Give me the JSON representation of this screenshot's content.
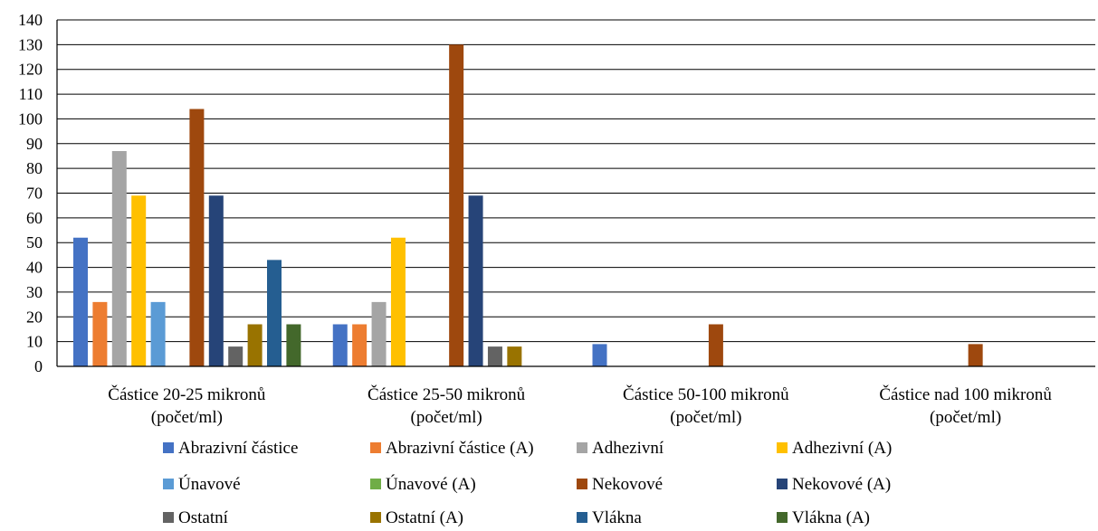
{
  "chart_data": {
    "type": "bar",
    "categories": [
      [
        "Částice 20-25 mikronů",
        "(počet/ml)"
      ],
      [
        "Částice 25-50 mikronů",
        "(počet/ml)"
      ],
      [
        "Částice 50-100 mikronů",
        "(počet/ml)"
      ],
      [
        "Částice nad 100 mikronů",
        "(počet/ml)"
      ]
    ],
    "ylim": [
      0,
      140
    ],
    "ytick_step": 10,
    "grid": true,
    "legend_position": "bottom",
    "series": [
      {
        "name": "Abrazivní částice",
        "color": "#4472C4",
        "values": [
          52,
          17,
          9,
          0
        ]
      },
      {
        "name": "Abrazivní částice (A)",
        "color": "#ED7D31",
        "values": [
          26,
          17,
          0,
          0
        ]
      },
      {
        "name": "Adhezivní",
        "color": "#A5A5A5",
        "values": [
          87,
          26,
          0,
          0
        ]
      },
      {
        "name": "Adhezivní (A)",
        "color": "#FFC000",
        "values": [
          69,
          52,
          0,
          0
        ]
      },
      {
        "name": "Únavové",
        "color": "#5B9BD5",
        "values": [
          26,
          0,
          0,
          0
        ]
      },
      {
        "name": "Únavové (A)",
        "color": "#70AD47",
        "values": [
          0,
          0,
          0,
          0
        ]
      },
      {
        "name": "Nekovové",
        "color": "#9E480E",
        "values": [
          104,
          130,
          17,
          9
        ]
      },
      {
        "name": "Nekovové (A)",
        "color": "#264478",
        "values": [
          69,
          69,
          0,
          0
        ]
      },
      {
        "name": "Ostatní",
        "color": "#636363",
        "values": [
          8,
          8,
          0,
          0
        ]
      },
      {
        "name": "Ostatní (A)",
        "color": "#997300",
        "values": [
          17,
          8,
          0,
          0
        ]
      },
      {
        "name": "Vlákna",
        "color": "#255E91",
        "values": [
          43,
          0,
          0,
          0
        ]
      },
      {
        "name": "Vlákna (A)",
        "color": "#43682B",
        "values": [
          17,
          0,
          0,
          0
        ]
      }
    ]
  }
}
